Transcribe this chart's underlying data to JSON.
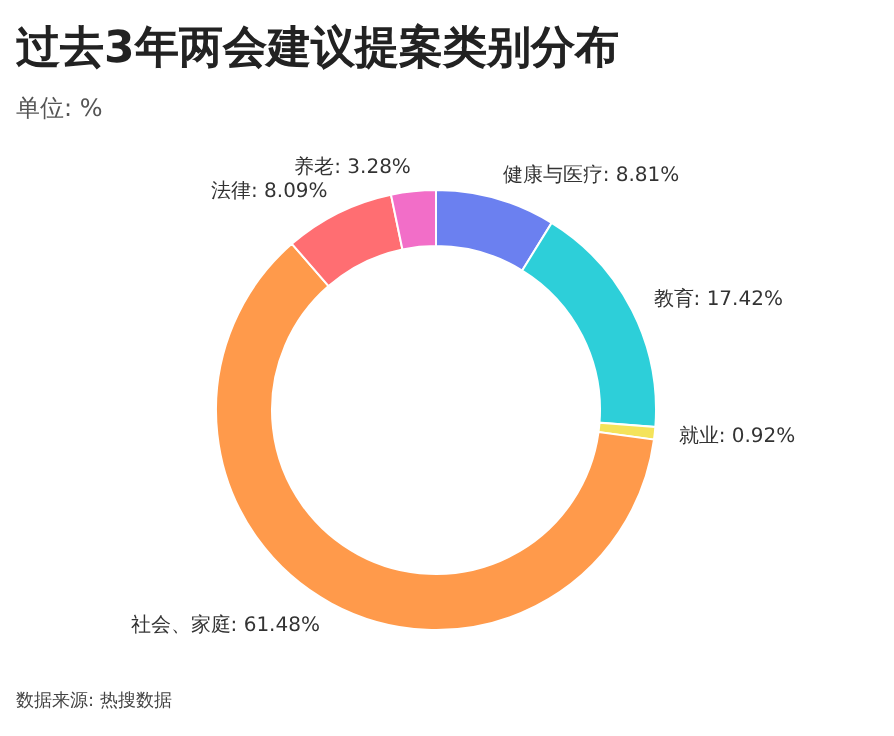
{
  "chart_data": {
    "type": "donut",
    "title": "过去3年两会建议提案类别分布",
    "subtitle": "单位: %",
    "categories": [
      "健康与医疗",
      "教育",
      "就业",
      "社会、家庭",
      "法律",
      "养老"
    ],
    "values": [
      8.81,
      17.42,
      0.92,
      61.48,
      8.09,
      3.28
    ],
    "colors": [
      "#6b80f0",
      "#2dcfd9",
      "#f4e35a",
      "#ff9a4b",
      "#ff6e72",
      "#f26ec8"
    ],
    "value_labels": [
      "8.81%",
      "17.42%",
      "0.92%",
      "61.48%",
      "8.09%",
      "3.28%"
    ],
    "annotations": [
      "数据来源: 热搜数据"
    ]
  }
}
